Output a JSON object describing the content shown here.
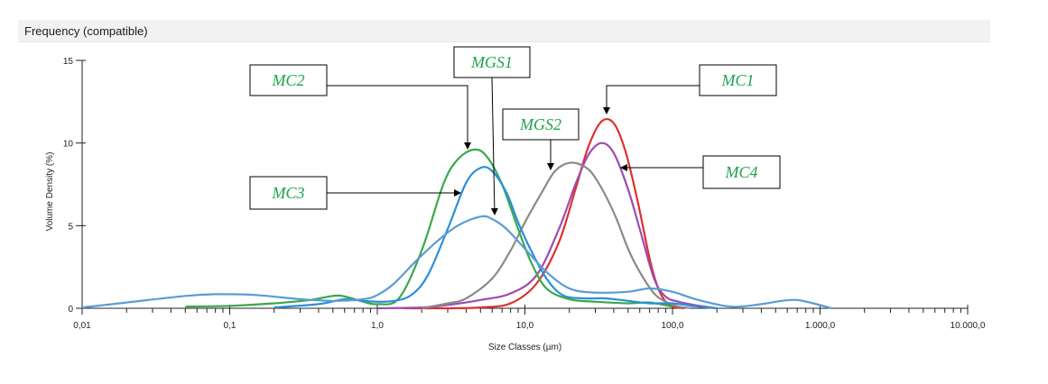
{
  "panel": {
    "title": "Frequency (compatible)"
  },
  "chart_data": {
    "type": "line",
    "xscale": "log",
    "xlim": [
      0.01,
      10000
    ],
    "ylim": [
      0,
      15
    ],
    "xlabel": "Size Classes (µm)",
    "ylabel": "Volume Density (%)",
    "xticks": [
      {
        "value": 0.01,
        "label": "0,01"
      },
      {
        "value": 0.1,
        "label": "0,1"
      },
      {
        "value": 1,
        "label": "1,0"
      },
      {
        "value": 10,
        "label": "10,0"
      },
      {
        "value": 100,
        "label": "100,0"
      },
      {
        "value": 1000,
        "label": "1.000,0"
      },
      {
        "value": 10000,
        "label": "10.000,0"
      }
    ],
    "yticks": [
      {
        "value": 0,
        "label": "0"
      },
      {
        "value": 5,
        "label": "5"
      },
      {
        "value": 10,
        "label": "10"
      },
      {
        "value": 15,
        "label": "15"
      }
    ],
    "series": [
      {
        "name": "MC1",
        "color": "#dd3030",
        "x": [
          1.5,
          3,
          5,
          8,
          12,
          17,
          22,
          27,
          33,
          40,
          48,
          58,
          70,
          80,
          90,
          100,
          120
        ],
        "y": [
          0,
          0,
          0.05,
          0.3,
          1.5,
          4.0,
          7.2,
          9.8,
          11.3,
          11.2,
          9.5,
          6.5,
          3.0,
          1.2,
          0.4,
          0.1,
          0
        ]
      },
      {
        "name": "MC4",
        "color": "#9b4db0",
        "x": [
          1,
          2,
          3,
          5,
          8,
          12,
          17,
          22,
          27,
          33,
          40,
          50,
          60,
          75,
          90,
          110,
          140,
          200
        ],
        "y": [
          0,
          0.05,
          0.2,
          0.5,
          0.9,
          2.0,
          4.8,
          7.5,
          9.3,
          10.0,
          9.4,
          7.2,
          4.8,
          1.8,
          0.7,
          0.4,
          0.2,
          0
        ]
      },
      {
        "name": "MGS2",
        "color": "#8a8a8a",
        "x": [
          2,
          3,
          4,
          6,
          8,
          10,
          13,
          16,
          20,
          25,
          30,
          40,
          50,
          60,
          75,
          90,
          110,
          140
        ],
        "y": [
          0,
          0.3,
          0.6,
          1.8,
          3.5,
          5.2,
          7.0,
          8.3,
          8.8,
          8.6,
          7.9,
          5.8,
          3.6,
          2.2,
          0.9,
          0.4,
          0.1,
          0
        ]
      },
      {
        "name": "MC2",
        "color": "#3aa84a",
        "x": [
          0.05,
          0.1,
          0.2,
          0.35,
          0.5,
          0.6,
          0.8,
          1.0,
          1.4,
          2.0,
          2.8,
          3.5,
          4.5,
          5.5,
          7,
          9,
          11,
          14,
          20,
          30,
          50,
          70,
          100
        ],
        "y": [
          0.1,
          0.15,
          0.3,
          0.5,
          0.75,
          0.72,
          0.4,
          0.25,
          0.6,
          3.5,
          7.5,
          9.0,
          9.6,
          9.2,
          7.5,
          4.8,
          2.8,
          1.2,
          0.55,
          0.4,
          0.3,
          0.35,
          0.1
        ]
      },
      {
        "name": "MC3",
        "color": "#2a8fd8",
        "x": [
          0.2,
          0.4,
          0.6,
          0.8,
          1.0,
          1.3,
          1.7,
          2.2,
          3.0,
          4.0,
          5.0,
          6.0,
          7.5,
          9,
          11,
          14,
          18,
          25,
          35,
          50,
          70,
          100,
          150,
          200
        ],
        "y": [
          0.05,
          0.25,
          0.55,
          0.45,
          0.4,
          0.45,
          0.8,
          2.0,
          4.8,
          7.6,
          8.5,
          8.3,
          7.0,
          5.2,
          3.5,
          1.8,
          0.8,
          0.6,
          0.6,
          0.45,
          0.3,
          0.3,
          0.1,
          0
        ]
      },
      {
        "name": "MGS1",
        "color": "#5b9bd5",
        "x": [
          0.01,
          0.02,
          0.05,
          0.08,
          0.15,
          0.3,
          0.5,
          0.8,
          1.0,
          1.3,
          1.8,
          2.5,
          3.5,
          5.0,
          6.0,
          7.5,
          10,
          14,
          20,
          30,
          50,
          70,
          100,
          150,
          250,
          400,
          550,
          700,
          900,
          1200
        ],
        "y": [
          0.05,
          0.35,
          0.75,
          0.85,
          0.8,
          0.55,
          0.45,
          0.55,
          0.8,
          1.5,
          2.8,
          4.0,
          5.0,
          5.55,
          5.4,
          4.8,
          3.6,
          2.2,
          1.2,
          0.95,
          1.0,
          1.2,
          1.0,
          0.5,
          0.1,
          0.25,
          0.45,
          0.5,
          0.3,
          0
        ]
      }
    ]
  },
  "callouts": [
    {
      "label": "MC2",
      "target": "MC2"
    },
    {
      "label": "MGS1",
      "target": "MGS1"
    },
    {
      "label": "MGS2",
      "target": "MGS2"
    },
    {
      "label": "MC1",
      "target": "MC1"
    },
    {
      "label": "MC3",
      "target": "MC3"
    },
    {
      "label": "MC4",
      "target": "MC4"
    }
  ]
}
